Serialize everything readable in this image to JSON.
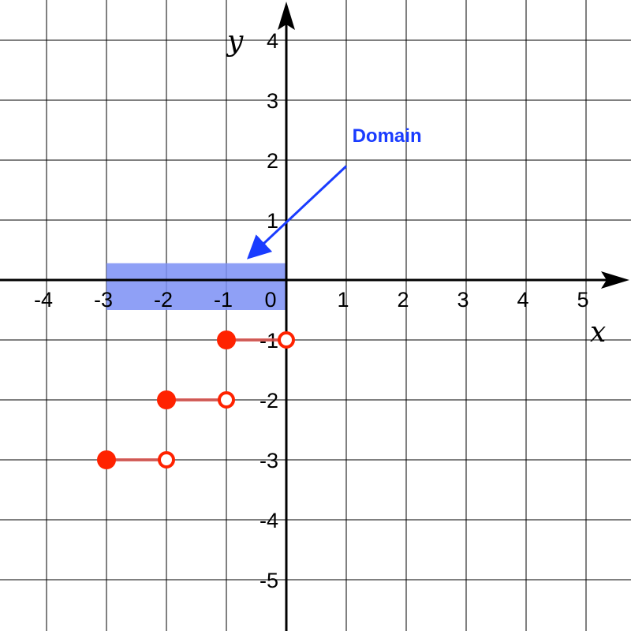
{
  "chart_data": {
    "type": "line",
    "title": "",
    "xlabel": "x",
    "ylabel": "y",
    "xlim": [
      -4.7,
      5.8
    ],
    "ylim": [
      -5.9,
      4.7
    ],
    "grid": true,
    "x_ticks": [
      -4,
      -3,
      -2,
      -1,
      0,
      1,
      2,
      3,
      4,
      5
    ],
    "x_tick_labels": [
      "-4",
      "-3",
      "-2",
      "-1",
      "0",
      "1",
      "2",
      "3",
      "4",
      "5"
    ],
    "y_ticks": [
      4,
      3,
      2,
      1,
      -1,
      -2,
      -3,
      -4,
      -5
    ],
    "y_tick_labels": [
      "4",
      "3",
      "2",
      "1",
      "-1",
      "-2",
      "-3",
      "-4",
      "-5"
    ],
    "segments": [
      {
        "x_start": -3,
        "x_end": -2,
        "y": -3,
        "start_closed": true,
        "end_closed": false
      },
      {
        "x_start": -2,
        "x_end": -1,
        "y": -2,
        "start_closed": true,
        "end_closed": false
      },
      {
        "x_start": -1,
        "x_end": 0,
        "y": -1,
        "start_closed": true,
        "end_closed": false
      }
    ],
    "domain_region": {
      "x_start": -3,
      "x_end": 0,
      "y_start": -0.5,
      "y_end": 0.28
    },
    "annotation": {
      "text": "Domain",
      "text_x": 1.1,
      "text_y": 2.3,
      "arrow_from": [
        1.0,
        1.9
      ],
      "arrow_to": [
        -0.6,
        0.4
      ]
    },
    "colors": {
      "segment": "#ff2200",
      "segment_line": "#d9534f",
      "domain_fill": "#7b8ff5",
      "annotation": "#1a3cff"
    }
  }
}
